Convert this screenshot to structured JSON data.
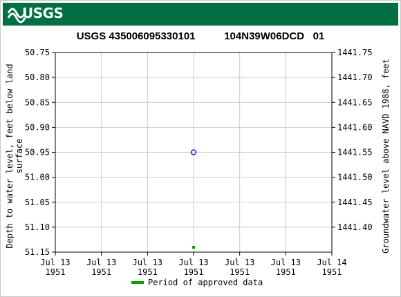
{
  "header": {
    "agency": "USGS"
  },
  "chart_data": {
    "type": "scatter",
    "title_site": "USGS 435006095330101",
    "title_local": "104N39W06DCD   01",
    "ylabel_left": "Depth to water level, feet below land surface",
    "ylabel_left_line1": "Depth to water level, feet below land",
    "ylabel_left_line2": "surface",
    "ylabel_right": "Groundwater level above NAVD 1988, feet",
    "ylim_left": [
      51.15,
      50.75
    ],
    "left_ticks": [
      "50.75",
      "50.80",
      "50.85",
      "50.90",
      "50.95",
      "51.00",
      "51.05",
      "51.10",
      "51.15"
    ],
    "right_ticks": [
      "1441.75",
      "1441.70",
      "1441.65",
      "1441.60",
      "1441.55",
      "1441.50",
      "1441.45",
      "1441.40"
    ],
    "right_tick_values": [
      1441.75,
      1441.7,
      1441.65,
      1441.6,
      1441.55,
      1441.5,
      1441.45,
      1441.4
    ],
    "datum_offset": 1492.5,
    "x_ticks": [
      {
        "line1": "Jul 13",
        "line2": "1951"
      },
      {
        "line1": "Jul 13",
        "line2": "1951"
      },
      {
        "line1": "Jul 13",
        "line2": "1951"
      },
      {
        "line1": "Jul 13",
        "line2": "1951"
      },
      {
        "line1": "Jul 13",
        "line2": "1951"
      },
      {
        "line1": "Jul 13",
        "line2": "1951"
      },
      {
        "line1": "Jul 14",
        "line2": "1951"
      }
    ],
    "xlim": [
      "1951-07-13 00:00",
      "1951-07-14 00:00"
    ],
    "series": [
      {
        "kind": "measurement",
        "color": "#0000cc",
        "marker": "open-circle",
        "points": [
          {
            "x": "1951-07-13 12:00",
            "y": 50.95
          }
        ]
      },
      {
        "kind": "approved-period",
        "color": "#00a000",
        "marker": "square",
        "points": [
          {
            "x": "1951-07-13 12:00"
          }
        ]
      }
    ],
    "grid": true,
    "legend": {
      "label": "Period of approved data",
      "position": "bottom-center",
      "color": "#00a000"
    }
  }
}
